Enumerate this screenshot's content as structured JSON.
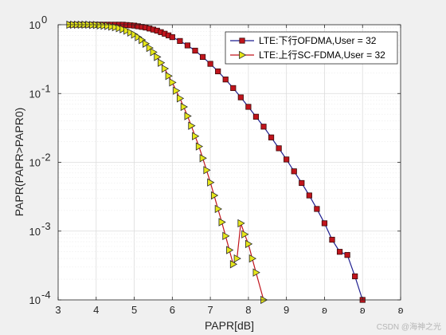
{
  "chart_data": {
    "type": "line",
    "xlabel": "PAPR[dB]",
    "ylabel": "PAPR(PAPR>PAPR0)",
    "xlim": [
      3,
      12
    ],
    "ylim": [
      0.0001,
      1
    ],
    "yscale": "log",
    "grid": true,
    "legend_position": "top-right",
    "x_tick_labels": [
      "3",
      "4",
      "5",
      "6",
      "7",
      "8",
      "9",
      "10",
      "11",
      "12"
    ],
    "x_tick_values": [
      3,
      4,
      5,
      6,
      7,
      8,
      9,
      10,
      11,
      12
    ],
    "x_tick_text": [
      "3",
      "4",
      "5",
      "6",
      "7",
      "8",
      "9",
      "ʚ",
      "ʚ",
      "ʚ"
    ],
    "y_tick_values": [
      0.0001,
      0.001,
      0.01,
      0.1,
      1
    ],
    "y_tick_exponents": [
      "-4",
      "-3",
      "-2",
      "-1",
      "0"
    ],
    "y_tick_base": "10",
    "series": [
      {
        "name": "LTE:下行OFDMA,User = 32",
        "color": "#1f1f8f",
        "marker": "square",
        "marker_color": "#c0141c",
        "x": [
          3.3,
          3.4,
          3.5,
          3.6,
          3.7,
          3.8,
          3.9,
          4.0,
          4.1,
          4.2,
          4.3,
          4.4,
          4.5,
          4.6,
          4.7,
          4.8,
          4.9,
          5.0,
          5.1,
          5.2,
          5.3,
          5.4,
          5.5,
          5.6,
          5.7,
          5.8,
          5.9,
          6.0,
          6.2,
          6.4,
          6.6,
          6.8,
          7.0,
          7.2,
          7.4,
          7.6,
          7.8,
          8.0,
          8.2,
          8.4,
          8.6,
          8.8,
          9.0,
          9.2,
          9.4,
          9.6,
          9.8,
          10.0,
          10.2,
          10.4,
          10.6,
          10.8,
          11.0
        ],
        "y": [
          1,
          1,
          1,
          1,
          1,
          1,
          1,
          1,
          1,
          1,
          1,
          1,
          1,
          1,
          1,
          0.99,
          0.98,
          0.97,
          0.95,
          0.93,
          0.91,
          0.88,
          0.85,
          0.82,
          0.78,
          0.74,
          0.7,
          0.66,
          0.58,
          0.5,
          0.42,
          0.34,
          0.27,
          0.21,
          0.16,
          0.12,
          0.088,
          0.064,
          0.046,
          0.033,
          0.023,
          0.016,
          0.011,
          0.0074,
          0.005,
          0.0033,
          0.0021,
          0.0013,
          0.00075,
          0.0005,
          0.00045,
          0.00022,
          0.0001
        ]
      },
      {
        "name": "LTE:上行SC-FDMA,User = 32",
        "color": "#c0141c",
        "marker": "triangle-right",
        "marker_color": "#e6e619",
        "x": [
          3.3,
          3.4,
          3.5,
          3.6,
          3.7,
          3.8,
          3.9,
          4.0,
          4.1,
          4.2,
          4.3,
          4.4,
          4.5,
          4.6,
          4.7,
          4.8,
          4.9,
          5.0,
          5.1,
          5.2,
          5.3,
          5.4,
          5.5,
          5.6,
          5.7,
          5.8,
          5.9,
          6.0,
          6.1,
          6.2,
          6.3,
          6.4,
          6.5,
          6.6,
          6.7,
          6.8,
          6.9,
          7.0,
          7.1,
          7.2,
          7.3,
          7.4,
          7.5,
          7.6,
          7.7,
          7.8,
          7.9,
          8.0,
          8.1,
          8.2,
          8.4
        ],
        "y": [
          1,
          1,
          1,
          1,
          1,
          1,
          0.99,
          0.99,
          0.98,
          0.97,
          0.96,
          0.94,
          0.92,
          0.89,
          0.86,
          0.82,
          0.77,
          0.72,
          0.66,
          0.6,
          0.53,
          0.46,
          0.4,
          0.34,
          0.28,
          0.23,
          0.18,
          0.145,
          0.11,
          0.085,
          0.064,
          0.047,
          0.034,
          0.024,
          0.017,
          0.0115,
          0.0077,
          0.0051,
          0.0033,
          0.0021,
          0.00135,
          0.00085,
          0.00053,
          0.00033,
          0.0004,
          0.0013,
          0.0009,
          0.00065,
          0.0004,
          0.00025,
          0.0001
        ]
      }
    ]
  },
  "watermark": "CSDN @海神之光"
}
